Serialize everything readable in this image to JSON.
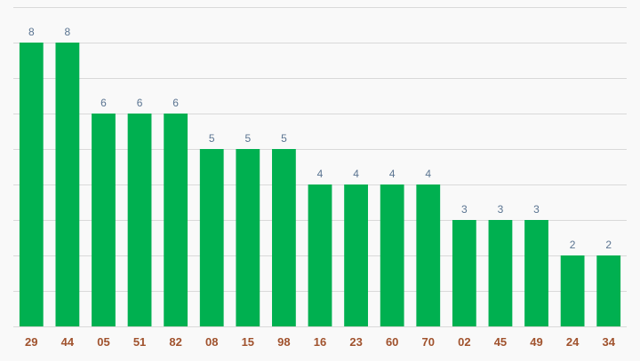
{
  "chart_data": {
    "type": "bar",
    "categories": [
      "29",
      "44",
      "05",
      "51",
      "82",
      "08",
      "15",
      "98",
      "16",
      "23",
      "60",
      "70",
      "02",
      "45",
      "49",
      "24",
      "34"
    ],
    "values": [
      8,
      8,
      6,
      6,
      6,
      5,
      5,
      5,
      4,
      4,
      4,
      4,
      3,
      3,
      3,
      2,
      2
    ],
    "ylim": [
      0,
      9
    ],
    "grid": true,
    "data_labels": true,
    "colors": {
      "bar": "#00b050",
      "value_label": "#5a7491",
      "tick_label": "#a0522d",
      "grid": "#d9d9d9",
      "background": "#f9f9f9"
    }
  }
}
